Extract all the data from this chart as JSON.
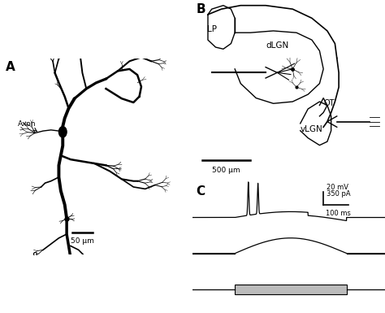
{
  "background_color": "#ffffff",
  "panel_A_label": "A",
  "panel_B_label": "B",
  "panel_C_label": "C",
  "axon_label": "Axon",
  "LP_label": "LP",
  "dLGN_label": "dLGN",
  "OT_label": "OT",
  "vLGN_label": "vLGN",
  "scale_bar_A": "50 μm",
  "scale_bar_B": "500 μm",
  "scale_C_mv": "20 mV",
  "scale_C_pa": "350 pA",
  "scale_C_ms": "100 ms",
  "line_color": "#000000",
  "gray_color": "#aaaaaa",
  "light_gray": "#bbbbbb"
}
